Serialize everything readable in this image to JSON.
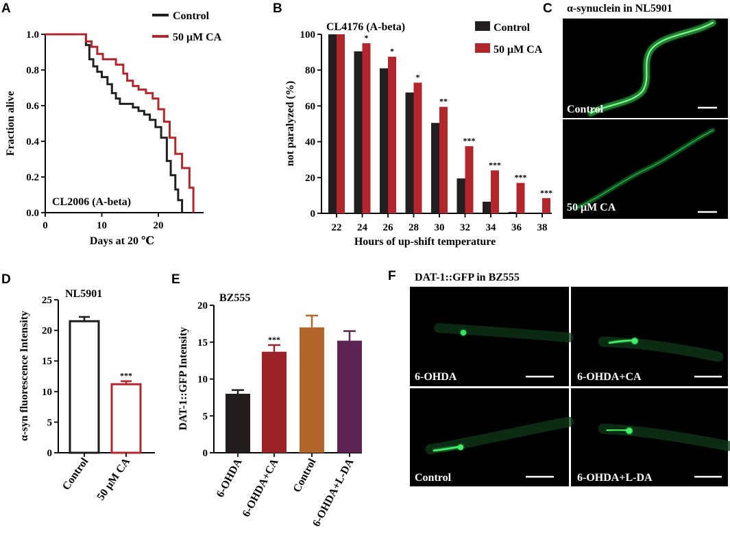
{
  "colors": {
    "control": "#231f20",
    "ca": "#b3262c",
    "ohda": "#231c1c",
    "ohda_ca": "#9b2328",
    "ctrl_orange": "#b2652a",
    "ohda_ldopa": "#5b2452",
    "green": "#2ed15a"
  },
  "panels": {
    "A": "A",
    "B": "B",
    "C": "C",
    "D": "D",
    "E": "E",
    "F": "F"
  },
  "chart_data": [
    {
      "id": "A",
      "type": "line",
      "subtype": "survival-step",
      "title": "CL2006 (A-beta)",
      "xlabel": "Days at 20 ℃",
      "ylabel": "Fraction alive",
      "xlim": [
        0,
        28
      ],
      "ylim": [
        0,
        1.0
      ],
      "xticks": [
        "0",
        "10",
        "20"
      ],
      "yticks": [
        "0.0",
        "0.2",
        "0.4",
        "0.6",
        "0.8",
        "1.0"
      ],
      "legend": [
        "Control",
        "50 μM CA"
      ],
      "series": [
        {
          "name": "Control",
          "x": [
            0,
            7.2,
            7.2,
            7.8,
            7.8,
            8.5,
            8.5,
            9.2,
            9.2,
            10.0,
            10.0,
            11.0,
            11.0,
            11.8,
            11.8,
            12.5,
            12.5,
            13.2,
            13.2,
            15.5,
            15.5,
            16.5,
            16.5,
            17.5,
            17.5,
            18.5,
            18.5,
            19.5,
            19.5,
            20.5,
            20.5,
            21.5,
            21.5,
            22.2,
            22.2,
            23.0,
            23.0,
            23.5,
            23.5,
            24.2,
            24.2
          ],
          "y": [
            1.0,
            1.0,
            0.94,
            0.94,
            0.86,
            0.86,
            0.82,
            0.82,
            0.79,
            0.79,
            0.76,
            0.76,
            0.72,
            0.72,
            0.67,
            0.67,
            0.64,
            0.64,
            0.61,
            0.61,
            0.59,
            0.59,
            0.57,
            0.57,
            0.55,
            0.55,
            0.52,
            0.52,
            0.48,
            0.48,
            0.42,
            0.42,
            0.29,
            0.29,
            0.21,
            0.21,
            0.13,
            0.13,
            0.07,
            0.07,
            0.0
          ]
        },
        {
          "name": "50 μM CA",
          "x": [
            0,
            7.2,
            7.2,
            8.2,
            8.2,
            9.2,
            9.2,
            10.2,
            10.2,
            12.5,
            12.5,
            13.8,
            13.8,
            14.5,
            14.5,
            15.5,
            15.5,
            16.5,
            16.5,
            17.8,
            17.8,
            19.0,
            19.0,
            20.0,
            20.0,
            21.0,
            21.0,
            22.0,
            22.0,
            23.0,
            23.0,
            24.2,
            24.2,
            25.5,
            25.5,
            26.2,
            26.2
          ],
          "y": [
            1.0,
            1.0,
            0.96,
            0.96,
            0.93,
            0.93,
            0.89,
            0.89,
            0.86,
            0.86,
            0.83,
            0.83,
            0.78,
            0.78,
            0.74,
            0.74,
            0.71,
            0.71,
            0.69,
            0.69,
            0.67,
            0.67,
            0.64,
            0.64,
            0.58,
            0.58,
            0.51,
            0.51,
            0.42,
            0.42,
            0.33,
            0.33,
            0.25,
            0.25,
            0.14,
            0.14,
            0.0
          ]
        }
      ]
    },
    {
      "id": "B",
      "type": "bar",
      "title": "CL4176 (A-beta)",
      "xlabel": "Hours of up-shift temperature",
      "ylabel": "not paralyzed (%)",
      "ylim": [
        0,
        100
      ],
      "yticks": [
        "0",
        "20",
        "40",
        "60",
        "80",
        "100"
      ],
      "categories": [
        "22",
        "24",
        "26",
        "28",
        "30",
        "32",
        "34",
        "36",
        "38"
      ],
      "legend": [
        "Control",
        "50 μM CA"
      ],
      "series": [
        {
          "name": "Control",
          "values": [
            100,
            90.5,
            81,
            67.5,
            50.5,
            19.5,
            6.5,
            0.8,
            0
          ]
        },
        {
          "name": "50 μM CA",
          "values": [
            100,
            95,
            87.5,
            73,
            59.5,
            37.5,
            24,
            17,
            8.5
          ]
        }
      ],
      "annotations": [
        "",
        "*",
        "*",
        "*",
        "**",
        "***",
        "***",
        "***",
        "***"
      ]
    },
    {
      "id": "D",
      "type": "bar",
      "title": "NL5901",
      "ylabel": "α-syn fluorescence Intensity",
      "ylim": [
        0,
        25
      ],
      "yticks": [
        "0",
        "5",
        "10",
        "15",
        "20",
        "25"
      ],
      "categories": [
        "Control",
        "50 μM CA"
      ],
      "values": [
        21.5,
        11.2
      ],
      "errors": [
        0.7,
        0.5
      ],
      "annotations": [
        "",
        "***"
      ]
    },
    {
      "id": "E",
      "type": "bar",
      "title": "BZ555",
      "ylabel": "DAT-1::GFP  Intensity",
      "ylim": [
        0,
        20
      ],
      "yticks": [
        "0",
        "5",
        "10",
        "15",
        "20"
      ],
      "categories": [
        "6-OHDA",
        "6-OHDA+CA",
        "Control",
        "6-OHDA+L-DA"
      ],
      "values": [
        8.0,
        13.7,
        17.0,
        15.2
      ],
      "errors": [
        0.5,
        0.9,
        1.6,
        1.3
      ],
      "annotations": [
        "",
        "***",
        "",
        ""
      ]
    }
  ],
  "panelC": {
    "title": "α-synuclein in NL5901",
    "images": [
      "Control",
      "50 μM CA"
    ]
  },
  "panelF": {
    "title": "DAT-1::GFP in BZ555",
    "images": [
      "6-OHDA",
      "6-OHDA+CA",
      "Control",
      "6-OHDA+L-DA"
    ]
  }
}
